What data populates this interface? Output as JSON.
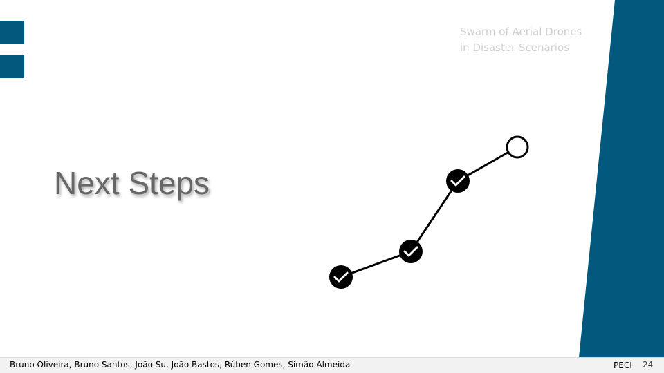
{
  "header": {
    "line1": "Swarm of Aerial Drones",
    "line2": "in Disaster Scenarios"
  },
  "title": "Next Steps",
  "steps": [
    {
      "status": "done",
      "icon": "checkmark-icon"
    },
    {
      "status": "done",
      "icon": "checkmark-icon"
    },
    {
      "status": "done",
      "icon": "checkmark-icon"
    },
    {
      "status": "pending",
      "icon": "empty-circle-icon"
    }
  ],
  "footer": {
    "authors": "Bruno Oliveira, Bruno Santos, João Su, João Bastos, Rúben Gomes, Simão Almeida",
    "course": "PECI",
    "page_number": "24"
  },
  "colors": {
    "accent": "#02587d",
    "title": "#666666",
    "header_text": "#cfcfcf",
    "footer_bg": "#f2f2f2"
  }
}
